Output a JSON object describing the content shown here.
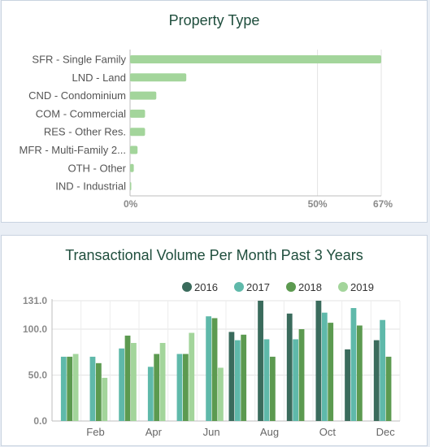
{
  "chart_data": [
    {
      "type": "bar",
      "orientation": "horizontal",
      "title": "Property Type",
      "categories": [
        "SFR - Single Family",
        "LND - Land",
        "CND - Condominium",
        "COM - Commercial",
        "RES - Other Res.",
        "MFR - Multi-Family 2...",
        "OTH - Other",
        "IND - Industrial"
      ],
      "values": [
        67,
        15,
        7,
        4,
        4,
        2,
        1,
        0.3
      ],
      "x_ticks": [
        "0%",
        "50%",
        "67%"
      ],
      "xlim": [
        0,
        67
      ],
      "grid": true,
      "colors": {
        "bar": "#a3d59b",
        "axis_label": "#8a8a8a",
        "category_label": "#555555"
      }
    },
    {
      "type": "bar",
      "title": "Transactional Volume Per Month Past 3 Years",
      "legend_position": "top-right",
      "x_ticks": [
        "Feb",
        "Apr",
        "Jun",
        "Aug",
        "Oct",
        "Dec"
      ],
      "y_ticks": [
        "0.0",
        "50.0",
        "100.0",
        "131.0"
      ],
      "ylim": [
        0,
        131
      ],
      "grid": true,
      "series": [
        {
          "name": "2016",
          "color": "#3a6b5c",
          "values": [
            0,
            0,
            0,
            0,
            0,
            0,
            97,
            131,
            117,
            131,
            78,
            88
          ]
        },
        {
          "name": "2017",
          "color": "#5fb9aa",
          "values": [
            70,
            70,
            79,
            59,
            73,
            114,
            88,
            89,
            89,
            118,
            123,
            110
          ]
        },
        {
          "name": "2018",
          "color": "#5c9a50",
          "values": [
            70,
            63,
            93,
            73,
            73,
            112,
            94,
            70,
            100,
            107,
            104,
            70
          ]
        },
        {
          "name": "2019",
          "color": "#a3d59b",
          "values": [
            73,
            47,
            85,
            85,
            96,
            58,
            0,
            0,
            0,
            0,
            0,
            0
          ]
        }
      ]
    }
  ]
}
